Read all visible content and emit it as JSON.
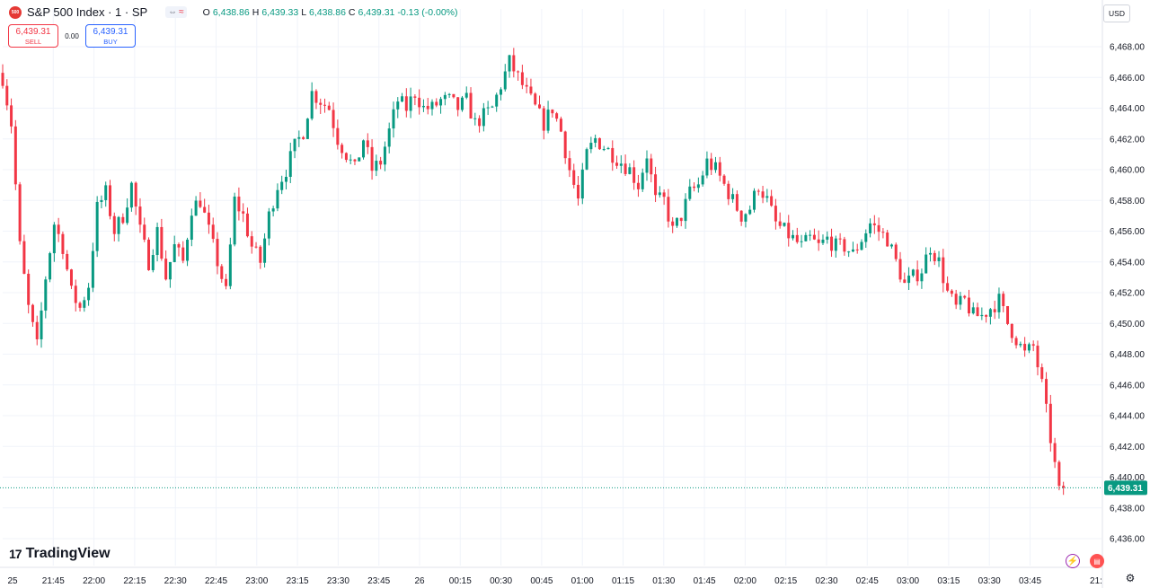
{
  "header": {
    "symbol_badge": "500",
    "title": "S&P 500 Index · 1 · SP",
    "pill_left": "⇔",
    "pill_right": "≈",
    "ohlc": {
      "o_label": "O",
      "o": "6,438.86",
      "h_label": "H",
      "h": "6,439.33",
      "l_label": "L",
      "l": "6,438.86",
      "c_label": "C",
      "c": "6,439.31",
      "change": "-0.13 (-0.00%)"
    }
  },
  "trade": {
    "sell_price": "6,439.31",
    "sell_label": "SELL",
    "spread": "0.00",
    "buy_price": "6,439.31",
    "buy_label": "BUY"
  },
  "currency": "USD",
  "brand": {
    "mark": "17",
    "name": "TradingView"
  },
  "colors": {
    "up": "#089981",
    "down": "#f23645",
    "grid": "#f0f3fa",
    "last": "#089981"
  },
  "icons": {
    "bolt": "lightning-icon",
    "flag": "flag-icon",
    "settings": "gear-icon"
  },
  "chart_data": {
    "type": "candlestick",
    "interval": "1",
    "ylim": [
      6435.0,
      6469.7
    ],
    "y_ticks": [
      "6,468.00",
      "6,466.00",
      "6,464.00",
      "6,462.00",
      "6,460.00",
      "6,458.00",
      "6,456.00",
      "6,454.00",
      "6,452.00",
      "6,450.00",
      "6,448.00",
      "6,446.00",
      "6,444.00",
      "6,442.00",
      "6,440.00",
      "6,438.00",
      "6,436.00"
    ],
    "x_ticks": [
      "25",
      "21:45",
      "22:00",
      "22:15",
      "22:30",
      "22:45",
      "23:00",
      "23:15",
      "23:30",
      "23:45",
      "26",
      "00:15",
      "00:30",
      "00:45",
      "01:00",
      "01:15",
      "01:30",
      "01:45",
      "02:00",
      "02:15",
      "02:30",
      "02:45",
      "03:00",
      "03:15",
      "03:30",
      "03:45",
      "21:"
    ],
    "last_price": 6439.31,
    "last_price_label": "6,439.31",
    "close_path": [
      [
        0,
        6466.0
      ],
      [
        2,
        6463.0
      ],
      [
        4,
        6455.0
      ],
      [
        6,
        6451.0
      ],
      [
        8,
        6448.5
      ],
      [
        10,
        6453.0
      ],
      [
        12,
        6456.5
      ],
      [
        14,
        6455.0
      ],
      [
        16,
        6452.0
      ],
      [
        18,
        6451.0
      ],
      [
        20,
        6452.5
      ],
      [
        22,
        6457.5
      ],
      [
        24,
        6458.5
      ],
      [
        26,
        6456.0
      ],
      [
        28,
        6457.0
      ],
      [
        30,
        6459.0
      ],
      [
        32,
        6456.0
      ],
      [
        34,
        6454.0
      ],
      [
        36,
        6456.0
      ],
      [
        38,
        6453.0
      ],
      [
        40,
        6455.0
      ],
      [
        42,
        6454.0
      ],
      [
        44,
        6457.5
      ],
      [
        46,
        6458.0
      ],
      [
        48,
        6456.0
      ],
      [
        50,
        6454.0
      ],
      [
        52,
        6452.0
      ],
      [
        54,
        6458.0
      ],
      [
        56,
        6457.0
      ],
      [
        58,
        6455.0
      ],
      [
        60,
        6454.0
      ],
      [
        62,
        6457.0
      ],
      [
        64,
        6459.0
      ],
      [
        66,
        6460.0
      ],
      [
        68,
        6461.5
      ],
      [
        70,
        6462.5
      ],
      [
        72,
        6465.0
      ],
      [
        74,
        6464.5
      ],
      [
        76,
        6464.0
      ],
      [
        78,
        6462.0
      ],
      [
        80,
        6461.0
      ],
      [
        82,
        6460.0
      ],
      [
        84,
        6462.0
      ],
      [
        86,
        6460.0
      ],
      [
        88,
        6460.5
      ],
      [
        90,
        6462.5
      ],
      [
        92,
        6464.5
      ],
      [
        94,
        6464.0
      ],
      [
        96,
        6465.0
      ],
      [
        98,
        6464.0
      ],
      [
        100,
        6464.0
      ],
      [
        102,
        6464.5
      ],
      [
        104,
        6464.5
      ],
      [
        106,
        6464.0
      ],
      [
        108,
        6464.5
      ],
      [
        110,
        6463.0
      ],
      [
        112,
        6463.5
      ],
      [
        114,
        6464.0
      ],
      [
        116,
        6465.5
      ],
      [
        118,
        6467.0
      ],
      [
        120,
        6466.0
      ],
      [
        122,
        6465.0
      ],
      [
        124,
        6464.0
      ],
      [
        126,
        6463.0
      ],
      [
        128,
        6464.0
      ],
      [
        130,
        6462.5
      ],
      [
        132,
        6460.0
      ],
      [
        134,
        6458.0
      ],
      [
        136,
        6461.0
      ],
      [
        138,
        6462.0
      ],
      [
        140,
        6461.5
      ],
      [
        142,
        6461.0
      ],
      [
        144,
        6460.5
      ],
      [
        146,
        6460.0
      ],
      [
        148,
        6459.0
      ],
      [
        150,
        6461.0
      ],
      [
        152,
        6458.0
      ],
      [
        154,
        6458.0
      ],
      [
        156,
        6456.0
      ],
      [
        158,
        6457.0
      ],
      [
        160,
        6458.5
      ],
      [
        162,
        6459.0
      ],
      [
        164,
        6460.5
      ],
      [
        166,
        6460.0
      ],
      [
        168,
        6459.0
      ],
      [
        170,
        6458.0
      ],
      [
        172,
        6457.0
      ],
      [
        174,
        6457.5
      ],
      [
        176,
        6459.0
      ],
      [
        178,
        6458.0
      ],
      [
        180,
        6456.5
      ],
      [
        182,
        6456.0
      ],
      [
        184,
        6455.5
      ],
      [
        186,
        6455.0
      ],
      [
        188,
        6455.5
      ],
      [
        190,
        6455.0
      ],
      [
        192,
        6455.5
      ],
      [
        194,
        6455.0
      ],
      [
        196,
        6455.0
      ],
      [
        198,
        6454.5
      ],
      [
        200,
        6455.5
      ],
      [
        202,
        6456.5
      ],
      [
        204,
        6456.0
      ],
      [
        206,
        6455.5
      ],
      [
        208,
        6454.0
      ],
      [
        210,
        6452.5
      ],
      [
        212,
        6453.0
      ],
      [
        214,
        6453.5
      ],
      [
        216,
        6455.0
      ],
      [
        218,
        6454.0
      ],
      [
        220,
        6452.0
      ],
      [
        222,
        6451.0
      ],
      [
        224,
        6451.5
      ],
      [
        226,
        6450.5
      ],
      [
        228,
        6450.5
      ],
      [
        230,
        6451.0
      ],
      [
        232,
        6451.5
      ],
      [
        234,
        6450.0
      ],
      [
        236,
        6449.0
      ],
      [
        238,
        6448.0
      ],
      [
        240,
        6448.5
      ],
      [
        242,
        6446.0
      ],
      [
        244,
        6442.5
      ],
      [
        246,
        6439.0
      ],
      [
        247,
        6439.31
      ]
    ]
  }
}
